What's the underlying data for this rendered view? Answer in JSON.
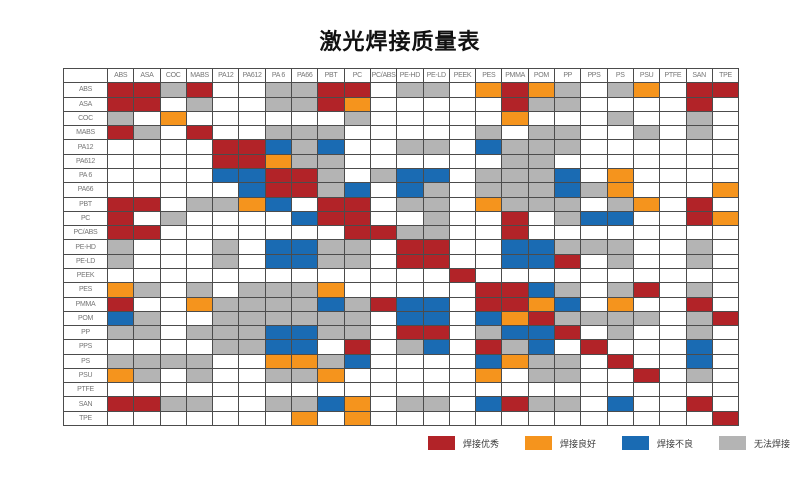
{
  "title": "激光焊接质量表",
  "legend": {
    "items": [
      {
        "code": "R",
        "label": "焊接优秀",
        "color": "#b22328"
      },
      {
        "code": "O",
        "label": "焊接良好",
        "color": "#f5941d"
      },
      {
        "code": "B",
        "label": "焊接不良",
        "color": "#1a6bb3"
      },
      {
        "code": "G",
        "label": "无法焊接",
        "color": "#b4b4b4"
      }
    ]
  },
  "chart_data": {
    "type": "heatmap",
    "title": "激光焊接质量表",
    "materials": [
      "ABS",
      "ASA",
      "COC",
      "MABS",
      "PA12",
      "PA612",
      "PA 6",
      "PA66",
      "PBT",
      "PC",
      "PC/ABS",
      "PE-HD",
      "PE-LD",
      "PEEK",
      "PES",
      "PMMA",
      "POM",
      "PP",
      "PPS",
      "PS",
      "PSU",
      "PTFE",
      "SAN",
      "TPE"
    ],
    "value_legend": {
      "R": "焊接优秀",
      "O": "焊接良好",
      "B": "焊接不良",
      "G": "无法焊接",
      "W": "空白"
    },
    "color_map": {
      "R": "#b22328",
      "O": "#f5941d",
      "B": "#1a6bb3",
      "G": "#b4b4b4",
      "W": "#ffffff"
    },
    "matrix": [
      "RRGRWWGGRRWGGWOROGWGOWRR",
      "RRWGWWGGROWWWWWRGGWWWWRW",
      "GWOWWWWWWGWWWWWOWWWGWWGW",
      "RGWRWWGGGWWWWWGWGGWWGWGW",
      "WWWWRRBGBWWGGWBGGGWWWWWW",
      "WWWWRROGGWWWWWWGGWWWWWWW",
      "WWWWBBRRGWGBBWGGGBWOWWWW",
      "WWWWWBRRGBWBGWGGGBGOWWWO",
      "RRWGGOBWRRWGGWOGGGWGOWRW",
      "RWGWWWWBRRWWGWWRWGBBWWRO",
      "RRWWWWWWWRRGGWWRWWWWWWWW",
      "GWWWGWBBGGWRRWWBBGGGWWGW",
      "GWWWGWBBGGWRRWWBBRWGWWGW",
      "WWWWWWWWWWWWWRWWWWWWWWWW",
      "OGWGWGGGOWWWWWRRBGWGRWGW",
      "RWWOGGGGBGRBBWRROBWOWWRW",
      "BGWWGGGGGGWBBWBORGGGGWGR",
      "GGWGGGBBGGWRRWGBBRWGWWGW",
      "WWWWGGBBWRWGBWRGBWRWWWBW",
      "GGGGWWOOGBWWWWBOGGWRWWBW",
      "OGWGWWGGOWWWWWOWGGWWRWGW",
      "WWWWWWWWWWWWWWWWWWWWWWWW",
      "RRGGWWGGBOWGGWBRGGWBWWRW",
      "WWWWWWWOWOWWWWWWWWWWWWWR"
    ]
  }
}
